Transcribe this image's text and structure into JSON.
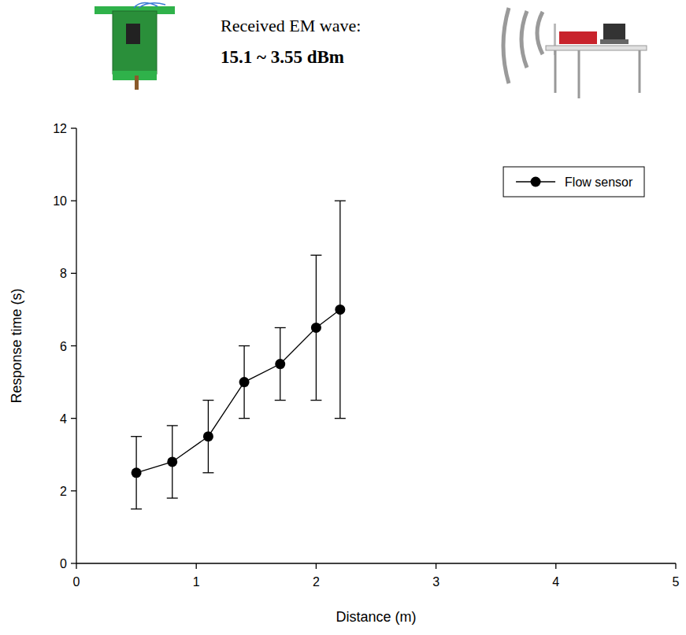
{
  "chart_data": {
    "type": "line",
    "annotations": [
      "Received EM wave:",
      "15.1 ~ 3.55 dBm"
    ],
    "xlabel": "Distance (m)",
    "ylabel": "Response time (s)",
    "x": [
      0.5,
      0.8,
      1.1,
      1.4,
      1.7,
      2.0,
      2.2
    ],
    "series": [
      {
        "name": "Flow sensor",
        "color": "#000000",
        "marker": "circle",
        "line_style": "solid",
        "values": [
          2.5,
          2.8,
          3.5,
          5.0,
          5.5,
          6.5,
          7.0
        ],
        "error": [
          1.0,
          1.0,
          1.0,
          1.0,
          1.0,
          2.0,
          3.0
        ]
      }
    ],
    "xlim": [
      0,
      5
    ],
    "ylim": [
      0,
      12
    ],
    "xticks": [
      0,
      1,
      2,
      3,
      4,
      5
    ],
    "yticks": [
      0,
      2,
      4,
      6,
      8,
      10,
      12
    ],
    "legend": "upper right",
    "grid": false
  }
}
